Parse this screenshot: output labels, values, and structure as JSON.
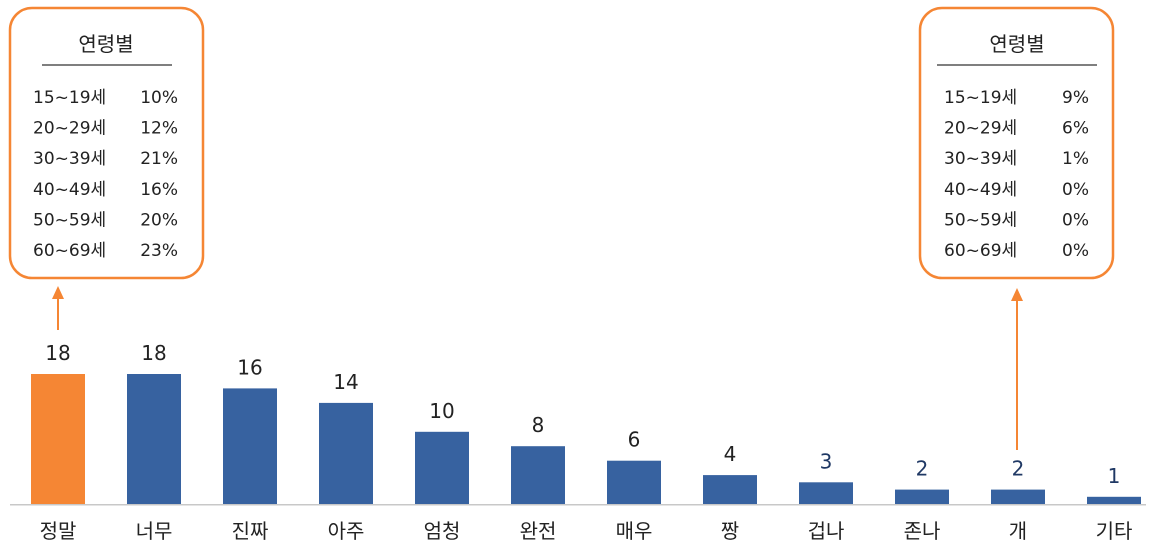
{
  "chart_data": {
    "type": "bar",
    "categories": [
      "정말",
      "너무",
      "진짜",
      "아주",
      "엄청",
      "완전",
      "매우",
      "짱",
      "겁나",
      "존나",
      "개",
      "기타"
    ],
    "values": [
      18,
      18,
      16,
      14,
      10,
      8,
      6,
      4,
      3,
      2,
      2,
      1
    ],
    "ylim": [
      0,
      18
    ],
    "grid": false,
    "legend": "none",
    "highlight_index": 0,
    "label_colors": [
      "#222222",
      "#222222",
      "#222222",
      "#222222",
      "#222222",
      "#222222",
      "#222222",
      "#222222",
      "#1F3864",
      "#1F3864",
      "#1F3864",
      "#1F3864"
    ],
    "colors": {
      "bar": "#3762A0",
      "highlight": "#F58634",
      "accent": "#F58634"
    },
    "annotations": [
      {
        "target": "정말",
        "position": "top-left",
        "title": "연령별",
        "rows": [
          {
            "age": "15~19세",
            "pct": "10%"
          },
          {
            "age": "20~29세",
            "pct": "12%"
          },
          {
            "age": "30~39세",
            "pct": "21%"
          },
          {
            "age": "40~49세",
            "pct": "16%"
          },
          {
            "age": "50~59세",
            "pct": "20%"
          },
          {
            "age": "60~69세",
            "pct": "23%"
          }
        ]
      },
      {
        "target": "개",
        "position": "top-right",
        "title": "연령별",
        "rows": [
          {
            "age": "15~19세",
            "pct": "9%"
          },
          {
            "age": "20~29세",
            "pct": "6%"
          },
          {
            "age": "30~39세",
            "pct": "1%"
          },
          {
            "age": "40~49세",
            "pct": "0%"
          },
          {
            "age": "50~59세",
            "pct": "0%"
          },
          {
            "age": "60~69세",
            "pct": "0%"
          }
        ]
      }
    ]
  }
}
